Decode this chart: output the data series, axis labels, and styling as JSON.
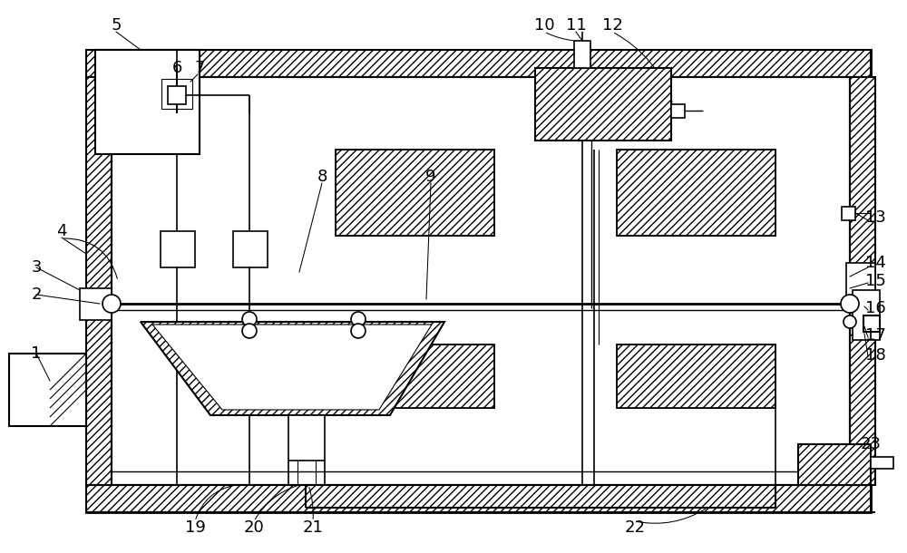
{
  "bg_color": "#ffffff",
  "lc": "#000000",
  "labels": [
    [
      "5",
      128,
      28
    ],
    [
      "6",
      195,
      75
    ],
    [
      "7",
      220,
      75
    ],
    [
      "8",
      355,
      195
    ],
    [
      "9",
      475,
      195
    ],
    [
      "10",
      600,
      28
    ],
    [
      "11",
      635,
      28
    ],
    [
      "12",
      675,
      28
    ],
    [
      "13",
      965,
      240
    ],
    [
      "14",
      965,
      290
    ],
    [
      "15",
      965,
      310
    ],
    [
      "16",
      965,
      340
    ],
    [
      "17",
      965,
      370
    ],
    [
      "18",
      965,
      392
    ],
    [
      "4",
      68,
      255
    ],
    [
      "3",
      40,
      295
    ],
    [
      "2",
      40,
      325
    ],
    [
      "1",
      40,
      390
    ],
    [
      "19",
      215,
      582
    ],
    [
      "20",
      280,
      582
    ],
    [
      "21",
      345,
      582
    ],
    [
      "22",
      700,
      582
    ],
    [
      "23",
      960,
      490
    ]
  ]
}
